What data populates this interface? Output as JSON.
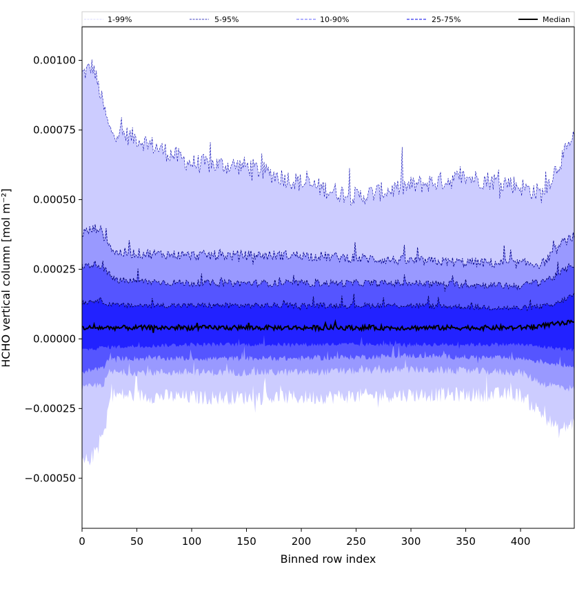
{
  "chart_data": {
    "type": "area",
    "xlabel": "Binned row index",
    "ylabel": "HCHO vertical column [mol m⁻²]",
    "xlim": [
      0,
      449
    ],
    "ylim": [
      -0.00068,
      0.00112
    ],
    "x_ticks": [
      0,
      50,
      100,
      150,
      200,
      250,
      300,
      350,
      400
    ],
    "x_tick_labels": [
      "0",
      "50",
      "100",
      "150",
      "200",
      "250",
      "300",
      "350",
      "400"
    ],
    "y_ticks": [
      -0.0005,
      -0.00025,
      0.0,
      0.00025,
      0.0005,
      0.00075,
      0.001
    ],
    "y_tick_labels": [
      "−0.00050",
      "−0.00025",
      "0.00000",
      "0.00025",
      "0.00050",
      "0.00075",
      "0.00100"
    ],
    "legend": {
      "placement": "top",
      "entries": [
        {
          "label": "1-99%",
          "color": "#ccccff",
          "style": "dashed-thin"
        },
        {
          "label": "5-95%",
          "color": "#0000aa",
          "style": "dashed-thin"
        },
        {
          "label": "10-90%",
          "color": "#8080ff",
          "style": "dashed"
        },
        {
          "label": "25-75%",
          "color": "#3333ee",
          "style": "dashed"
        },
        {
          "label": "Median",
          "color": "#000000",
          "style": "solid"
        }
      ]
    },
    "bands": [
      {
        "legend": "1-99%",
        "fill": "#ccccff",
        "upper_anchors": [
          [
            0,
            0.00095
          ],
          [
            10,
            0.00098
          ],
          [
            25,
            0.00075
          ],
          [
            50,
            0.00072
          ],
          [
            100,
            0.00063
          ],
          [
            150,
            0.00062
          ],
          [
            200,
            0.00056
          ],
          [
            250,
            0.00051
          ],
          [
            300,
            0.00055
          ],
          [
            350,
            0.00058
          ],
          [
            390,
            0.00056
          ],
          [
            420,
            0.00052
          ],
          [
            435,
            0.00063
          ],
          [
            449,
            0.00072
          ]
        ],
        "lower_anchors": [
          [
            0,
            -0.00045
          ],
          [
            10,
            -0.00042
          ],
          [
            22,
            -0.00032
          ],
          [
            25,
            -0.0002
          ],
          [
            100,
            -0.00021
          ],
          [
            200,
            -0.00021
          ],
          [
            300,
            -0.0002
          ],
          [
            400,
            -0.0002
          ],
          [
            420,
            -0.00027
          ],
          [
            435,
            -0.00033
          ],
          [
            449,
            -0.0003
          ]
        ]
      },
      {
        "legend": "5-95%",
        "fill": "#9999ff",
        "upper_anchors": [
          [
            0,
            0.00038
          ],
          [
            15,
            0.0004
          ],
          [
            30,
            0.00031
          ],
          [
            100,
            0.0003
          ],
          [
            200,
            0.0003
          ],
          [
            300,
            0.00028
          ],
          [
            400,
            0.00027
          ],
          [
            420,
            0.00027
          ],
          [
            440,
            0.00035
          ],
          [
            449,
            0.00037
          ]
        ],
        "lower_anchors": [
          [
            0,
            -0.00018
          ],
          [
            20,
            -0.00016
          ],
          [
            25,
            -0.00012
          ],
          [
            100,
            -0.00012
          ],
          [
            200,
            -0.00012
          ],
          [
            300,
            -0.00011
          ],
          [
            400,
            -0.00012
          ],
          [
            420,
            -0.00016
          ],
          [
            449,
            -0.00018
          ]
        ]
      },
      {
        "legend": "10-90%",
        "fill": "#5555ff",
        "upper_anchors": [
          [
            0,
            0.00026
          ],
          [
            15,
            0.00027
          ],
          [
            30,
            0.00021
          ],
          [
            100,
            0.0002
          ],
          [
            200,
            0.0002
          ],
          [
            300,
            0.0002
          ],
          [
            400,
            0.00019
          ],
          [
            430,
            0.00022
          ],
          [
            449,
            0.00027
          ]
        ],
        "lower_anchors": [
          [
            0,
            -0.00012
          ],
          [
            20,
            -0.0001
          ],
          [
            25,
            -7e-05
          ],
          [
            100,
            -7e-05
          ],
          [
            200,
            -7e-05
          ],
          [
            300,
            -6e-05
          ],
          [
            400,
            -7e-05
          ],
          [
            449,
            -0.0001
          ]
        ]
      },
      {
        "legend": "25-75%",
        "fill": "#2222ff",
        "upper_anchors": [
          [
            0,
            0.00013
          ],
          [
            15,
            0.00014
          ],
          [
            30,
            0.00012
          ],
          [
            100,
            0.00012
          ],
          [
            200,
            0.00012
          ],
          [
            300,
            0.00012
          ],
          [
            400,
            0.00011
          ],
          [
            430,
            0.00012
          ],
          [
            449,
            0.00016
          ]
        ],
        "lower_anchors": [
          [
            0,
            -4e-05
          ],
          [
            20,
            -3e-05
          ],
          [
            100,
            -2e-05
          ],
          [
            200,
            -2e-05
          ],
          [
            300,
            -2e-05
          ],
          [
            400,
            -2e-05
          ],
          [
            449,
            -4e-05
          ]
        ]
      }
    ],
    "median_anchors": [
      [
        0,
        4e-05
      ],
      [
        50,
        4e-05
      ],
      [
        100,
        4e-05
      ],
      [
        200,
        4e-05
      ],
      [
        300,
        4e-05
      ],
      [
        400,
        4e-05
      ],
      [
        449,
        6e-05
      ]
    ],
    "series_count": 450
  }
}
